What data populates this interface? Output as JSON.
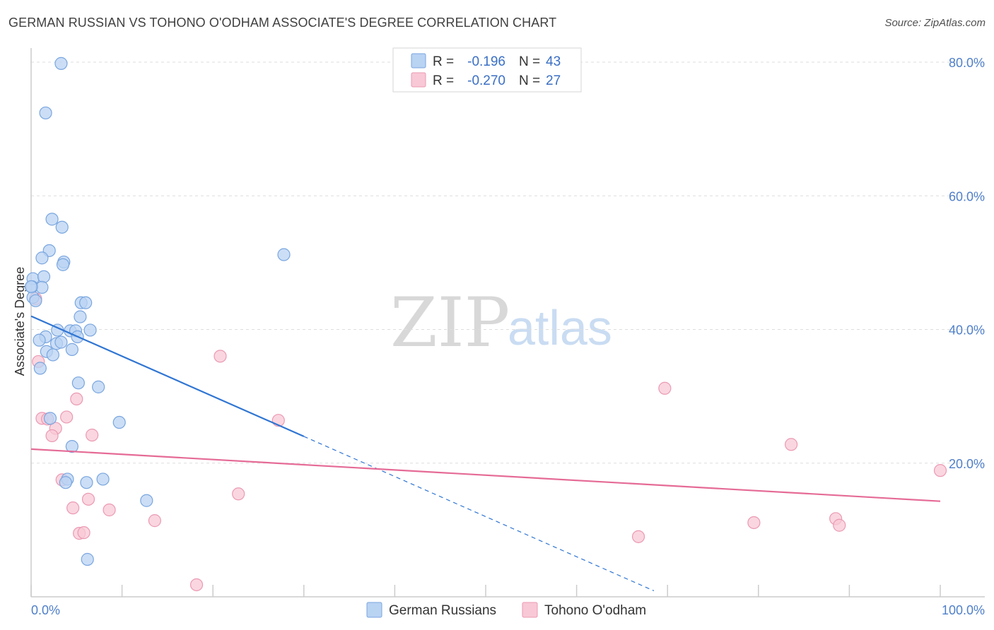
{
  "title": "GERMAN RUSSIAN VS TOHONO O'ODHAM ASSOCIATE'S DEGREE CORRELATION CHART",
  "source": "Source: ZipAtlas.com",
  "watermark": {
    "zip": "ZIP",
    "atlas": "atlas"
  },
  "colors": {
    "blue_fill": "#b9d3f3",
    "blue_stroke": "#7aa6df",
    "blue_line": "#2f75d3",
    "pink_fill": "#f8c8d6",
    "pink_stroke": "#eb9ab3",
    "pink_line": "#e56b96",
    "grid": "#dddddd",
    "axis": "#cccccc"
  },
  "legend": {
    "rows": [
      {
        "r_label": "R =",
        "r_value": "-0.196",
        "n_label": "N =",
        "n_value": "43"
      },
      {
        "r_label": "R =",
        "r_value": "-0.270",
        "n_label": "N =",
        "n_value": "27"
      }
    ]
  },
  "chart_data": {
    "type": "scatter",
    "title": "GERMAN RUSSIAN VS TOHONO O'ODHAM ASSOCIATE'S DEGREE CORRELATION CHART",
    "xlabel": "",
    "ylabel": "Associate's Degree",
    "xlim": [
      0,
      100
    ],
    "ylim": [
      0,
      80
    ],
    "x_tick_labels": [
      "0.0%",
      "100.0%"
    ],
    "y_ticks": [
      20,
      40,
      60,
      80
    ],
    "y_tick_labels": [
      "20.0%",
      "40.0%",
      "60.0%",
      "80.0%"
    ],
    "grid": true,
    "legend_position": "top-center",
    "series": [
      {
        "name": "German Russians",
        "r": -0.196,
        "n": 43,
        "trend": {
          "x0": 0,
          "y0": 42,
          "x1": 30,
          "y1": 24,
          "dashed_to_x": 68.5
        },
        "points": [
          [
            3.3,
            79.8
          ],
          [
            1.6,
            72.4
          ],
          [
            2.3,
            56.5
          ],
          [
            3.4,
            55.3
          ],
          [
            2.0,
            51.8
          ],
          [
            1.2,
            50.7
          ],
          [
            3.6,
            50.1
          ],
          [
            3.5,
            49.7
          ],
          [
            27.8,
            51.2
          ],
          [
            0.2,
            47.6
          ],
          [
            1.4,
            47.9
          ],
          [
            0.1,
            46.4
          ],
          [
            1.2,
            46.3
          ],
          [
            0.2,
            44.8
          ],
          [
            0.5,
            44.3
          ],
          [
            5.5,
            44.0
          ],
          [
            6.0,
            44.0
          ],
          [
            5.4,
            41.9
          ],
          [
            2.9,
            39.9
          ],
          [
            4.3,
            39.8
          ],
          [
            4.9,
            39.8
          ],
          [
            6.5,
            39.9
          ],
          [
            1.6,
            38.9
          ],
          [
            5.1,
            38.9
          ],
          [
            2.8,
            37.9
          ],
          [
            3.3,
            38.1
          ],
          [
            0.9,
            38.4
          ],
          [
            1.7,
            36.7
          ],
          [
            2.4,
            36.2
          ],
          [
            4.5,
            37.0
          ],
          [
            1.0,
            34.2
          ],
          [
            5.2,
            32.0
          ],
          [
            7.4,
            31.4
          ],
          [
            2.1,
            26.7
          ],
          [
            9.7,
            26.1
          ],
          [
            4.5,
            22.5
          ],
          [
            4.0,
            17.6
          ],
          [
            3.8,
            17.1
          ],
          [
            6.1,
            17.1
          ],
          [
            7.9,
            17.6
          ],
          [
            12.7,
            14.4
          ],
          [
            6.2,
            5.6
          ],
          [
            0.0,
            46.4
          ]
        ]
      },
      {
        "name": "Tohono O'odham",
        "r": -0.27,
        "n": 27,
        "trend": {
          "x0": 0,
          "y0": 22.1,
          "x1": 100,
          "y1": 14.3
        },
        "points": [
          [
            0.5,
            44.6
          ],
          [
            0.8,
            35.2
          ],
          [
            20.8,
            36.0
          ],
          [
            69.7,
            31.2
          ],
          [
            5.0,
            29.6
          ],
          [
            1.2,
            26.7
          ],
          [
            1.8,
            26.6
          ],
          [
            3.9,
            26.9
          ],
          [
            27.2,
            26.4
          ],
          [
            2.7,
            25.2
          ],
          [
            2.3,
            24.1
          ],
          [
            6.7,
            24.2
          ],
          [
            83.6,
            22.8
          ],
          [
            100.0,
            18.9
          ],
          [
            3.4,
            17.5
          ],
          [
            22.8,
            15.4
          ],
          [
            6.3,
            14.6
          ],
          [
            4.6,
            13.3
          ],
          [
            8.6,
            13.0
          ],
          [
            13.6,
            11.4
          ],
          [
            79.5,
            11.1
          ],
          [
            88.5,
            11.7
          ],
          [
            88.9,
            10.7
          ],
          [
            5.3,
            9.5
          ],
          [
            5.8,
            9.6
          ],
          [
            66.8,
            9.0
          ],
          [
            18.2,
            1.8
          ]
        ]
      }
    ]
  }
}
